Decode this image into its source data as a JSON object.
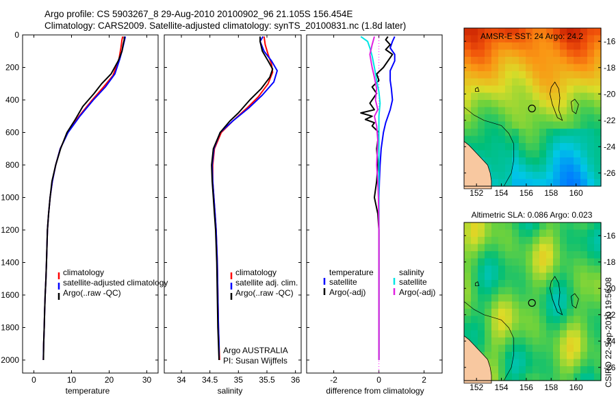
{
  "header": {
    "line1": "Argo profile: CS 5903267_8 29-Aug-2010 20100902_96 21.105S 156.454E",
    "line2": "Climatology: CARS2009. Satellite-adjusted climatology: synTS_20100831.nc (1.8d later)"
  },
  "side_stamp": "CSIRO 22-Sep-2010 19:56:08",
  "colors": {
    "climatology": "#ff0000",
    "satellite": "#0000ff",
    "argo": "#000000",
    "sat_salinity": "#00e5e5",
    "argo_adj_salinity": "#e020e0"
  },
  "chart_data": [
    {
      "id": "temperature",
      "type": "line",
      "xlabel": "temperature",
      "ylabel": "",
      "xlim": [
        -3,
        33
      ],
      "ylim": [
        2080,
        0
      ],
      "y_inverted": true,
      "xticks": [
        0,
        10,
        20,
        30
      ],
      "yticks": [
        0,
        200,
        400,
        600,
        800,
        1000,
        1200,
        1400,
        1600,
        1800,
        2000
      ],
      "legend": [
        "climatology",
        "satellite-adjusted climatology",
        "Argo(..raw -QC)"
      ],
      "legend_position": "lower-middle",
      "series": [
        {
          "name": "climatology",
          "color": "#ff0000",
          "points": [
            [
              23.6,
              10
            ],
            [
              23.4,
              30
            ],
            [
              23.1,
              80
            ],
            [
              22.6,
              150
            ],
            [
              21.0,
              250
            ],
            [
              18.5,
              320
            ],
            [
              15.5,
              400
            ],
            [
              12.0,
              500
            ],
            [
              9.0,
              600
            ],
            [
              7.0,
              700
            ],
            [
              5.8,
              800
            ],
            [
              4.9,
              900
            ],
            [
              4.3,
              1000
            ],
            [
              3.9,
              1100
            ],
            [
              3.6,
              1200
            ],
            [
              3.35,
              1400
            ],
            [
              3.2,
              1500
            ],
            [
              3.0,
              1600
            ],
            [
              2.85,
              1700
            ],
            [
              2.75,
              1800
            ],
            [
              2.6,
              1900
            ],
            [
              2.5,
              2000
            ]
          ]
        },
        {
          "name": "satellite-adjusted climatology",
          "color": "#0000ff",
          "points": [
            [
              24.3,
              10
            ],
            [
              24.0,
              40
            ],
            [
              23.5,
              90
            ],
            [
              22.8,
              150
            ],
            [
              21.5,
              240
            ],
            [
              19.0,
              320
            ],
            [
              15.8,
              400
            ],
            [
              12.2,
              500
            ],
            [
              9.1,
              600
            ],
            [
              7.0,
              700
            ],
            [
              5.8,
              800
            ],
            [
              4.9,
              900
            ],
            [
              4.3,
              1000
            ],
            [
              3.9,
              1100
            ],
            [
              3.6,
              1200
            ],
            [
              3.35,
              1400
            ],
            [
              3.2,
              1500
            ],
            [
              3.0,
              1600
            ],
            [
              2.85,
              1700
            ],
            [
              2.75,
              1800
            ],
            [
              2.6,
              1900
            ],
            [
              2.5,
              2000
            ]
          ]
        },
        {
          "name": "Argo(..raw -QC)",
          "color": "#000000",
          "points": [
            [
              24.0,
              10
            ],
            [
              24.0,
              30
            ],
            [
              23.7,
              60
            ],
            [
              23.4,
              100
            ],
            [
              22.4,
              160
            ],
            [
              20.5,
              240
            ],
            [
              18.0,
              300
            ],
            [
              16.0,
              360
            ],
            [
              13.0,
              440
            ],
            [
              11.0,
              520
            ],
            [
              8.8,
              600
            ],
            [
              7.1,
              700
            ],
            [
              5.8,
              800
            ],
            [
              4.8,
              900
            ],
            [
              4.3,
              1000
            ],
            [
              3.9,
              1100
            ],
            [
              3.6,
              1200
            ],
            [
              3.35,
              1400
            ],
            [
              3.2,
              1500
            ],
            [
              3.0,
              1600
            ],
            [
              2.85,
              1700
            ],
            [
              2.75,
              1800
            ],
            [
              2.6,
              1900
            ],
            [
              2.55,
              2000
            ]
          ]
        }
      ]
    },
    {
      "id": "salinity",
      "type": "line",
      "xlabel": "salinity",
      "ylabel": "",
      "xlim": [
        33.7,
        36.1
      ],
      "ylim": [
        2080,
        0
      ],
      "y_inverted": true,
      "xticks": [
        34,
        34.5,
        35,
        35.5,
        36
      ],
      "legend": [
        "climatology",
        "satellite adj. clim.",
        "Argo(..raw -QC)"
      ],
      "legend_position": "lower-middle",
      "annotations": [
        "Argo AUSTRALIA",
        "PI: Susan Wijffels"
      ],
      "series": [
        {
          "name": "climatology",
          "color": "#ff0000",
          "points": [
            [
              35.45,
              10
            ],
            [
              35.47,
              60
            ],
            [
              35.52,
              120
            ],
            [
              35.58,
              180
            ],
            [
              35.6,
              230
            ],
            [
              35.52,
              300
            ],
            [
              35.35,
              380
            ],
            [
              35.15,
              450
            ],
            [
              34.9,
              530
            ],
            [
              34.7,
              600
            ],
            [
              34.58,
              700
            ],
            [
              34.55,
              800
            ],
            [
              34.55,
              900
            ],
            [
              34.57,
              1000
            ],
            [
              34.59,
              1100
            ],
            [
              34.61,
              1200
            ],
            [
              34.63,
              1400
            ],
            [
              34.64,
              1600
            ],
            [
              34.65,
              1800
            ],
            [
              34.66,
              1900
            ],
            [
              34.67,
              2000
            ]
          ]
        },
        {
          "name": "satellite adj. clim.",
          "color": "#0000ff",
          "points": [
            [
              35.43,
              10
            ],
            [
              35.38,
              40
            ],
            [
              35.45,
              100
            ],
            [
              35.58,
              160
            ],
            [
              35.68,
              220
            ],
            [
              35.62,
              290
            ],
            [
              35.42,
              370
            ],
            [
              35.18,
              450
            ],
            [
              34.9,
              530
            ],
            [
              34.68,
              600
            ],
            [
              34.57,
              700
            ],
            [
              34.54,
              800
            ],
            [
              34.55,
              900
            ],
            [
              34.57,
              1000
            ],
            [
              34.59,
              1100
            ],
            [
              34.61,
              1200
            ],
            [
              34.63,
              1400
            ],
            [
              34.64,
              1600
            ],
            [
              34.65,
              1800
            ],
            [
              34.66,
              1900
            ],
            [
              34.66,
              2000
            ]
          ]
        },
        {
          "name": "Argo(..raw -QC)",
          "color": "#000000",
          "points": [
            [
              35.38,
              10
            ],
            [
              35.38,
              40
            ],
            [
              35.42,
              100
            ],
            [
              35.52,
              160
            ],
            [
              35.6,
              210
            ],
            [
              35.55,
              260
            ],
            [
              35.4,
              330
            ],
            [
              35.2,
              400
            ],
            [
              35.0,
              480
            ],
            [
              34.85,
              530
            ],
            [
              34.68,
              600
            ],
            [
              34.56,
              700
            ],
            [
              34.53,
              800
            ],
            [
              34.54,
              900
            ],
            [
              34.56,
              1000
            ],
            [
              34.58,
              1100
            ],
            [
              34.6,
              1200
            ],
            [
              34.62,
              1400
            ],
            [
              34.63,
              1600
            ],
            [
              34.64,
              1800
            ],
            [
              34.65,
              1900
            ],
            [
              34.66,
              2000
            ]
          ]
        }
      ]
    },
    {
      "id": "difference",
      "type": "line",
      "xlabel": "difference from climatology",
      "ylabel": "",
      "xlim": [
        -3.2,
        2.8
      ],
      "ylim": [
        2080,
        0
      ],
      "y_inverted": true,
      "xticks": [
        -2,
        0,
        2
      ],
      "legend_headers": [
        "temperature",
        "salinity"
      ],
      "legend": [
        "satellite",
        "Argo(-adj)",
        "satellite",
        "Argo(-adj)"
      ],
      "legend_position": "lower-middle",
      "series": [
        {
          "name": "satellite",
          "group": "temperature",
          "color": "#0000ff",
          "points": [
            [
              0.7,
              10
            ],
            [
              0.6,
              40
            ],
            [
              0.5,
              80
            ],
            [
              0.7,
              120
            ],
            [
              0.7,
              160
            ],
            [
              0.5,
              220
            ],
            [
              0.5,
              280
            ],
            [
              0.55,
              330
            ],
            [
              0.6,
              400
            ],
            [
              0.5,
              460
            ],
            [
              0.4,
              500
            ],
            [
              0.3,
              540
            ],
            [
              0.2,
              600
            ],
            [
              0.1,
              700
            ],
            [
              0.05,
              800
            ],
            [
              0.02,
              900
            ],
            [
              0.0,
              1000
            ],
            [
              0.0,
              1500
            ],
            [
              0.0,
              2000
            ]
          ]
        },
        {
          "name": "Argo(-adj)",
          "group": "temperature",
          "color": "#000000",
          "points": [
            [
              0.4,
              10
            ],
            [
              0.3,
              30
            ],
            [
              0.5,
              60
            ],
            [
              0.3,
              90
            ],
            [
              0.6,
              120
            ],
            [
              0.4,
              160
            ],
            [
              0.2,
              200
            ],
            [
              -0.1,
              240
            ],
            [
              0.0,
              280
            ],
            [
              -0.3,
              320
            ],
            [
              -0.1,
              360
            ],
            [
              -0.4,
              420
            ],
            [
              -0.2,
              460
            ],
            [
              -0.8,
              480
            ],
            [
              -0.3,
              500
            ],
            [
              -0.6,
              520
            ],
            [
              -0.2,
              540
            ],
            [
              -0.3,
              560
            ],
            [
              0.0,
              600
            ],
            [
              -0.1,
              700
            ],
            [
              -0.05,
              800
            ],
            [
              -0.1,
              900
            ],
            [
              -0.2,
              1000
            ],
            [
              -0.05,
              1100
            ],
            [
              0.0,
              1200
            ],
            [
              0.0,
              1500
            ],
            [
              0.0,
              2000
            ]
          ]
        },
        {
          "name": "satellite",
          "group": "salinity",
          "color": "#00e5e5",
          "points": [
            [
              -0.8,
              10
            ],
            [
              -0.5,
              40
            ],
            [
              -0.4,
              80
            ],
            [
              -0.3,
              130
            ],
            [
              -0.2,
              200
            ],
            [
              -0.1,
              280
            ],
            [
              0.0,
              350
            ],
            [
              0.05,
              420
            ],
            [
              0.0,
              500
            ],
            [
              0.0,
              600
            ],
            [
              0.0,
              800
            ],
            [
              0.0,
              1000
            ],
            [
              0.0,
              2000
            ]
          ]
        },
        {
          "name": "Argo(-adj)",
          "group": "salinity",
          "color": "#e020e0",
          "points": [
            [
              -0.2,
              10
            ],
            [
              -0.3,
              60
            ],
            [
              -0.4,
              120
            ],
            [
              -0.3,
              200
            ],
            [
              -0.2,
              260
            ],
            [
              -0.1,
              330
            ],
            [
              -0.15,
              400
            ],
            [
              -0.05,
              460
            ],
            [
              -0.2,
              500
            ],
            [
              -0.1,
              560
            ],
            [
              -0.05,
              650
            ],
            [
              -0.1,
              800
            ],
            [
              -0.05,
              900
            ],
            [
              -0.02,
              1000
            ],
            [
              0.0,
              1200
            ],
            [
              0.0,
              2000
            ]
          ]
        }
      ]
    },
    {
      "id": "sst_map",
      "type": "heatmap",
      "title": "AMSR-E SST: 24 Argo: 24.2",
      "xlim": [
        151,
        162
      ],
      "ylim": [
        -27,
        -15
      ],
      "xticks": [
        152,
        154,
        156,
        158,
        160
      ],
      "yticks": [
        -16,
        -18,
        -20,
        -22,
        -24,
        -26
      ],
      "profile_location": {
        "lon": 156.454,
        "lat": -21.105
      }
    },
    {
      "id": "sla_map",
      "type": "heatmap",
      "title": "Altimetric SLA: 0.086 Argo: 0.023",
      "xlim": [
        151,
        162
      ],
      "ylim": [
        -27,
        -15
      ],
      "xticks": [
        152,
        154,
        156,
        158,
        160
      ],
      "yticks": [
        -16,
        -18,
        -20,
        -22,
        -24,
        -26
      ],
      "profile_location": {
        "lon": 156.454,
        "lat": -21.105
      }
    }
  ]
}
